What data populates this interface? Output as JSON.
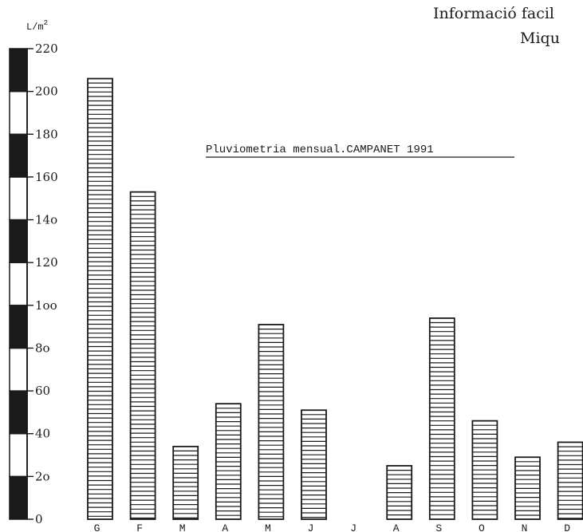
{
  "header": {
    "line1": "Informació facil",
    "line2": "Miqu"
  },
  "chart_data": {
    "type": "bar",
    "title": "Pluviometria mensual.CAMPANET 1991",
    "ylabel_base": "L/m",
    "ylabel_exp": "2",
    "ylim": [
      0,
      220
    ],
    "yticks": [
      "0",
      "2o",
      "40",
      "60",
      "8o",
      "1oo",
      "120",
      "14o",
      "160",
      "180",
      "200",
      "220"
    ],
    "categories": [
      "G",
      "F",
      "M",
      "A",
      "M",
      "J",
      "J",
      "A",
      "S",
      "O",
      "N",
      "D"
    ],
    "values": [
      206,
      153,
      34,
      54,
      91,
      51,
      0,
      25,
      94,
      46,
      29,
      36
    ],
    "colors": {
      "ink": "#1a1a1a",
      "bar_fill": "#ffffff",
      "background": "#ffffff"
    }
  }
}
